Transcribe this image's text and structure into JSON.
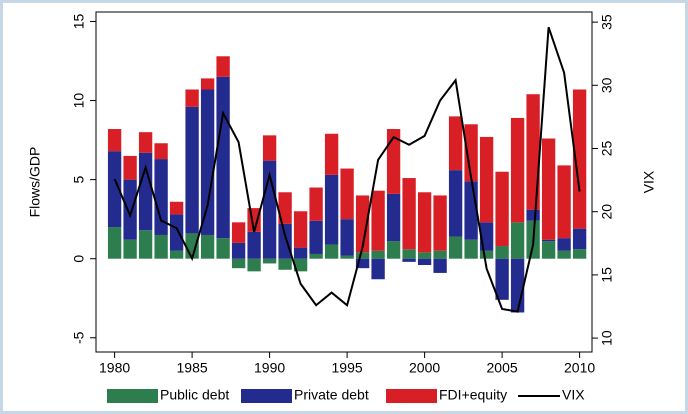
{
  "chart_data": {
    "type": "bar",
    "x": [
      1980,
      1981,
      1982,
      1983,
      1984,
      1985,
      1986,
      1987,
      1988,
      1989,
      1990,
      1991,
      1992,
      1993,
      1994,
      1995,
      1996,
      1997,
      1998,
      1999,
      2000,
      2001,
      2002,
      2003,
      2004,
      2005,
      2006,
      2007,
      2008,
      2009,
      2010
    ],
    "series": [
      {
        "name": "Public debt",
        "color": "#2e7d4e",
        "values": [
          2.0,
          1.2,
          1.8,
          1.5,
          0.5,
          1.6,
          1.5,
          1.3,
          -0.6,
          -0.8,
          -0.3,
          -0.7,
          -0.8,
          0.3,
          0.9,
          0.2,
          0.4,
          0.5,
          1.1,
          0.6,
          0.4,
          0.5,
          1.4,
          1.2,
          0.5,
          0.8,
          2.3,
          2.4,
          1.1,
          0.5,
          0.6
        ]
      },
      {
        "name": "Private debt",
        "color": "#232c8e",
        "values": [
          4.8,
          3.8,
          4.9,
          4.8,
          2.3,
          8.0,
          9.2,
          10.2,
          1.0,
          1.7,
          6.2,
          2.2,
          0.7,
          2.1,
          4.4,
          2.3,
          -0.6,
          -1.3,
          3.0,
          -0.2,
          -0.4,
          -0.9,
          4.2,
          3.7,
          1.8,
          -2.6,
          -3.4,
          0.7,
          0.1,
          0.8,
          1.3
        ]
      },
      {
        "name": "FDI+equity",
        "color": "#d81f26",
        "values": [
          1.4,
          1.5,
          1.3,
          1.0,
          0.8,
          1.1,
          0.7,
          1.3,
          1.3,
          1.5,
          1.6,
          2.0,
          2.3,
          2.1,
          2.6,
          3.2,
          3.6,
          3.8,
          4.1,
          4.5,
          3.8,
          3.5,
          3.4,
          3.6,
          5.4,
          4.7,
          6.6,
          7.3,
          6.4,
          4.6,
          8.8
        ]
      },
      {
        "name": "VIX",
        "type": "line",
        "axis": "y2",
        "color": "#000000",
        "values": [
          22.6,
          19.7,
          23.5,
          19.3,
          18.7,
          16.3,
          20.5,
          27.8,
          25.5,
          18.4,
          22.9,
          18.1,
          14.3,
          12.6,
          13.6,
          12.6,
          17.2,
          24.1,
          25.9,
          25.3,
          26.0,
          28.8,
          30.4,
          22.7,
          15.5,
          12.3,
          12.1,
          17.4,
          34.6,
          31.0,
          21.6
        ]
      }
    ],
    "ylabel": "Flows/GDP",
    "y2label": "VIX",
    "xlim": [
      1978.8,
      2010.8
    ],
    "xticks": [
      1980,
      1985,
      1990,
      1995,
      2000,
      2005,
      2010
    ],
    "ylim": [
      -5.9,
      15.6
    ],
    "yticks": [
      -5,
      0,
      5,
      10,
      15
    ],
    "y2lim": [
      8.9,
      35.8
    ],
    "y2ticks": [
      10,
      15,
      20,
      25,
      30,
      35
    ],
    "grid": false,
    "legend": "bottom"
  }
}
